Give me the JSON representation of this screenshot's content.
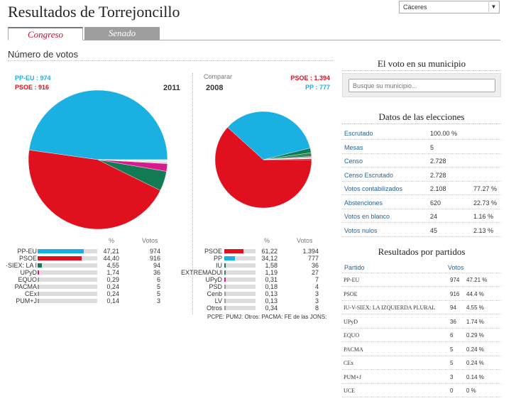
{
  "header": {
    "title": "Resultados de Torrejoncillo",
    "province_select": "Cáceres"
  },
  "tabs": [
    {
      "label": "Congreso",
      "active": true
    },
    {
      "label": "Senado",
      "active": false
    }
  ],
  "votes_section": {
    "heading": "Número de votos"
  },
  "chart_data": [
    {
      "type": "pie",
      "title": "2011",
      "legend": [
        {
          "label": "PP-EU : 974",
          "color": "#1ab0e2"
        },
        {
          "label": "PSOE : 916",
          "color": "#e0101e"
        }
      ],
      "slices": [
        {
          "name": "PP-EU",
          "value": 47.21,
          "color": "#1ab0e2"
        },
        {
          "name": "PSOE",
          "value": 44.4,
          "color": "#e0101e"
        },
        {
          "name": "IU-V-SIEX: LA I",
          "value": 4.55,
          "color": "#127a55"
        },
        {
          "name": "UPyD",
          "value": 1.74,
          "color": "#d81b8c"
        },
        {
          "name": "EQUO",
          "value": 0.29,
          "color": "#c9c9c9"
        },
        {
          "name": "PACMA",
          "value": 0.24,
          "color": "#d9d9d9"
        },
        {
          "name": "CEx",
          "value": 0.24,
          "color": "#e3e3e3"
        },
        {
          "name": "PUM+J",
          "value": 0.14,
          "color": "#ececec"
        }
      ],
      "table": {
        "col_pct": "%",
        "col_votes": "Votos",
        "rows": [
          {
            "name": "PP-EU",
            "pct": "47,21",
            "votes": "974",
            "color": "#1ab0e2",
            "frac": 0.4721
          },
          {
            "name": "PSOE",
            "pct": "44,40",
            "votes": "916",
            "color": "#e0101e",
            "frac": 0.444
          },
          {
            "name": "·SIEX: LA I",
            "pct": "4,55",
            "votes": "94",
            "color": "#127a55",
            "frac": 0.0455
          },
          {
            "name": "UPyD",
            "pct": "1,74",
            "votes": "36",
            "color": "#d81b8c",
            "frac": 0.0174
          },
          {
            "name": "EQUO",
            "pct": "0,29",
            "votes": "6",
            "color": "#999999",
            "frac": 0.0029
          },
          {
            "name": "PACMA",
            "pct": "0,24",
            "votes": "5",
            "color": "#999999",
            "frac": 0.0024
          },
          {
            "name": "CEx",
            "pct": "0,24",
            "votes": "5",
            "color": "#999999",
            "frac": 0.0024
          },
          {
            "name": "PUM+J",
            "pct": "0,14",
            "votes": "3",
            "color": "#999999",
            "frac": 0.0014
          }
        ]
      }
    },
    {
      "type": "pie",
      "title": "2008",
      "compare_label": "Comparar",
      "legend": [
        {
          "label": "PSOE : 1.394",
          "color": "#e0101e"
        },
        {
          "label": "PP : 777",
          "color": "#1ab0e2"
        }
      ],
      "slices": [
        {
          "name": "PSOE",
          "value": 61.22,
          "color": "#e0101e"
        },
        {
          "name": "PP",
          "value": 34.12,
          "color": "#1ab0e2"
        },
        {
          "name": "IU",
          "value": 1.58,
          "color": "#127a55"
        },
        {
          "name": "EXTREMADUR",
          "value": 1.19,
          "color": "#2e8b57"
        },
        {
          "name": "UPyD",
          "value": 0.31,
          "color": "#d81b8c"
        },
        {
          "name": "PSD",
          "value": 0.18,
          "color": "#c9c9c9"
        },
        {
          "name": "Cenb",
          "value": 0.13,
          "color": "#d9d9d9"
        },
        {
          "name": "LV",
          "value": 0.13,
          "color": "#e3e3e3"
        },
        {
          "name": "Otros",
          "value": 0.34,
          "color": "#8a1520"
        }
      ],
      "table": {
        "col_pct": "%",
        "col_votes": "Votos",
        "rows": [
          {
            "name": "PSOE",
            "pct": "61,22",
            "votes": "1.394",
            "color": "#e0101e",
            "frac": 0.6122
          },
          {
            "name": "PP",
            "pct": "34,12",
            "votes": "777",
            "color": "#1ab0e2",
            "frac": 0.3412
          },
          {
            "name": "IU",
            "pct": "1,58",
            "votes": "36",
            "color": "#127a55",
            "frac": 0.0158
          },
          {
            "name": "EXTREMADUR",
            "pct": "1,19",
            "votes": "27",
            "color": "#2e8b57",
            "frac": 0.0119
          },
          {
            "name": "UPyD",
            "pct": "0,31",
            "votes": "7",
            "color": "#d81b8c",
            "frac": 0.0031
          },
          {
            "name": "PSD",
            "pct": "0,18",
            "votes": "4",
            "color": "#999999",
            "frac": 0.0018
          },
          {
            "name": "Cenb",
            "pct": "0,13",
            "votes": "3",
            "color": "#999999",
            "frac": 0.0013
          },
          {
            "name": "LV",
            "pct": "0,13",
            "votes": "3",
            "color": "#999999",
            "frac": 0.0013
          },
          {
            "name": "Otros",
            "pct": "0,34",
            "votes": "8",
            "color": "#999999",
            "frac": 0.0034
          }
        ],
        "others_note": "PCPE: PUMJ: Otros: PACMA: FE de las JONS:"
      }
    }
  ],
  "sidebar": {
    "municipio": {
      "heading": "El voto en su municipio",
      "search_placeholder": "Busque su municipio..."
    },
    "datos": {
      "heading": "Datos de las elecciones",
      "rows": [
        {
          "label": "Escrutado",
          "value": "100.00 %",
          "pct": ""
        },
        {
          "label": "Mesas",
          "value": "5",
          "pct": ""
        },
        {
          "label": "Censo",
          "value": "2.728",
          "pct": ""
        },
        {
          "label": "Censo Escrutado",
          "value": "2.728",
          "pct": ""
        },
        {
          "label": "Votos contabilizados",
          "value": "2.108",
          "pct": "77.27 %"
        },
        {
          "label": "Abstenciones",
          "value": "620",
          "pct": "22.73 %"
        },
        {
          "label": "Votos en blanco",
          "value": "24",
          "pct": "1.16 %"
        },
        {
          "label": "Votos nulos",
          "value": "45",
          "pct": "2.13 %"
        }
      ]
    },
    "resultados": {
      "heading": "Resultados por partidos",
      "col_party": "Partido",
      "col_votes": "Votos",
      "rows": [
        {
          "party": "PP-EU",
          "votes": "974",
          "pct": "47.21 %"
        },
        {
          "party": "PSOE",
          "votes": "916",
          "pct": "44.4 %"
        },
        {
          "party": "IU-V-SIEX: LA IZQUIERDA PLURAL",
          "votes": "94",
          "pct": "4.55 %"
        },
        {
          "party": "UPyD",
          "votes": "36",
          "pct": "1.74 %"
        },
        {
          "party": "EQUO",
          "votes": "6",
          "pct": "0.29 %"
        },
        {
          "party": "PACMA",
          "votes": "5",
          "pct": "0.24 %"
        },
        {
          "party": "CEx",
          "votes": "5",
          "pct": "0.24 %"
        },
        {
          "party": "PUM+J",
          "votes": "3",
          "pct": "0.14 %"
        },
        {
          "party": "UCE",
          "votes": "0",
          "pct": "0 %"
        }
      ]
    }
  }
}
